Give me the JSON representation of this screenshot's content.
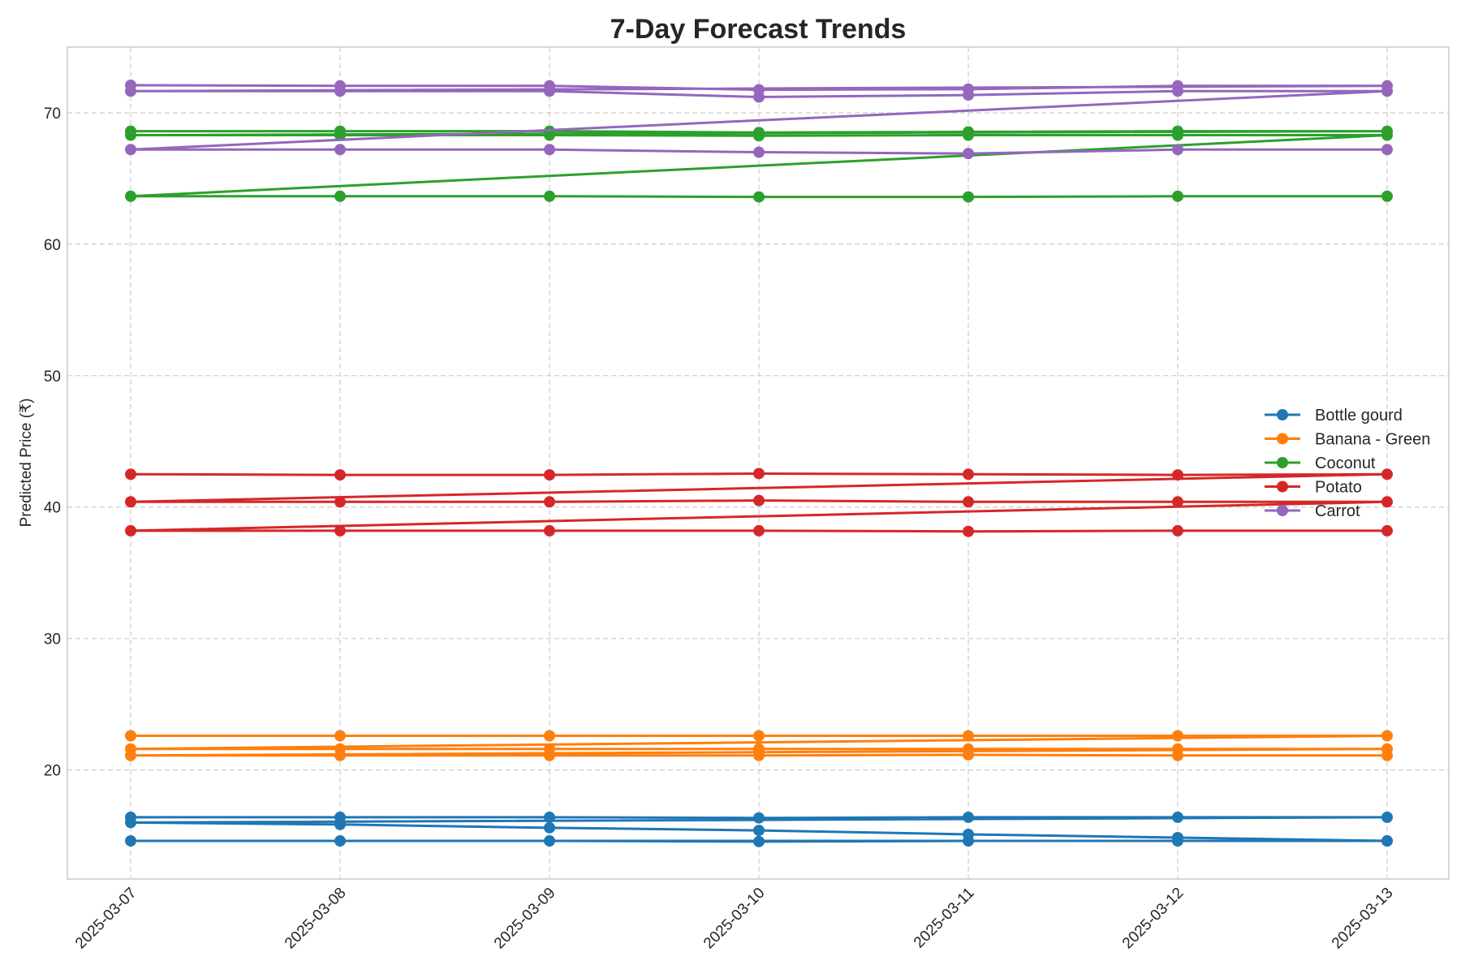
{
  "chart_data": {
    "type": "line",
    "title": "7-Day Forecast Trends",
    "xlabel": "",
    "ylabel": "Predicted Price (₹)",
    "x": [
      "2025-03-07",
      "2025-03-08",
      "2025-03-09",
      "2025-03-10",
      "2025-03-11",
      "2025-03-12",
      "2025-03-13"
    ],
    "ylim": [
      11.7,
      75
    ],
    "yticks": [
      20,
      30,
      40,
      50,
      60,
      70
    ],
    "grid": true,
    "legend": "center-right",
    "series": [
      {
        "name": "Bottle gourd",
        "color": "#1f77b4",
        "x": [
          0,
          1,
          2,
          3,
          4,
          5,
          6,
          0,
          1,
          2,
          3,
          4,
          5,
          6,
          0,
          1,
          2,
          3,
          4,
          5,
          6
        ],
        "values": [
          16.4,
          16.4,
          16.4,
          16.35,
          16.4,
          16.4,
          16.4,
          16.0,
          15.85,
          15.6,
          15.4,
          15.1,
          14.85,
          14.6,
          14.6,
          14.6,
          14.6,
          14.55,
          14.6,
          14.6,
          14.6
        ]
      },
      {
        "name": "Banana - Green",
        "color": "#ff7f0e",
        "x": [
          0,
          1,
          2,
          3,
          4,
          5,
          6,
          0,
          1,
          2,
          3,
          4,
          5,
          6,
          0,
          1,
          2,
          3,
          4,
          5,
          6
        ],
        "values": [
          22.6,
          22.6,
          22.6,
          22.6,
          22.6,
          22.6,
          22.6,
          21.6,
          21.6,
          21.6,
          21.6,
          21.6,
          21.6,
          21.6,
          21.1,
          21.1,
          21.1,
          21.1,
          21.15,
          21.1,
          21.1
        ]
      },
      {
        "name": "Coconut",
        "color": "#2ca02c",
        "x": [
          0,
          1,
          2,
          3,
          4,
          5,
          6,
          0,
          1,
          2,
          3,
          4,
          5,
          6,
          0,
          1,
          2,
          3,
          4,
          5,
          6
        ],
        "values": [
          68.6,
          68.6,
          68.6,
          68.5,
          68.55,
          68.6,
          68.6,
          68.3,
          68.3,
          68.3,
          68.25,
          68.3,
          68.3,
          68.3,
          63.65,
          63.65,
          63.65,
          63.6,
          63.6,
          63.65,
          63.65
        ]
      },
      {
        "name": "Potato",
        "color": "#d62728",
        "x": [
          0,
          1,
          2,
          3,
          4,
          5,
          6,
          0,
          1,
          2,
          3,
          4,
          5,
          6,
          0,
          1,
          2,
          3,
          4,
          5,
          6
        ],
        "values": [
          42.5,
          42.45,
          42.45,
          42.55,
          42.5,
          42.45,
          42.5,
          40.4,
          40.4,
          40.4,
          40.5,
          40.4,
          40.4,
          40.4,
          38.2,
          38.2,
          38.2,
          38.2,
          38.15,
          38.2,
          38.2
        ]
      },
      {
        "name": "Carrot",
        "color": "#9467bd",
        "x": [
          0,
          1,
          2,
          3,
          4,
          5,
          6,
          0,
          1,
          2,
          3,
          4,
          5,
          6,
          0,
          1,
          2,
          3,
          4,
          5,
          6
        ],
        "values": [
          72.1,
          72.05,
          72.05,
          71.75,
          71.8,
          72.05,
          72.05,
          71.65,
          71.65,
          71.65,
          71.2,
          71.35,
          71.65,
          71.65,
          67.2,
          67.2,
          67.2,
          67.0,
          66.9,
          67.2,
          67.2
        ]
      }
    ]
  }
}
